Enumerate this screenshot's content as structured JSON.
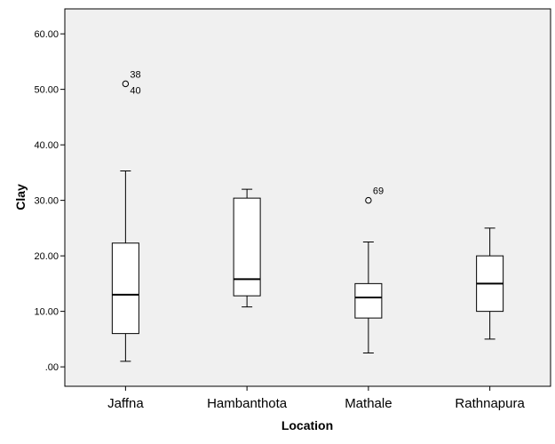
{
  "chart_data": {
    "type": "boxplot",
    "title": "",
    "xlabel": "Location",
    "ylabel": "Clay",
    "ylim": [
      -3.5,
      64.5
    ],
    "yticks": [
      0,
      10,
      20,
      30,
      40,
      50,
      60
    ],
    "ytick_labels": [
      ".00",
      "10.00",
      "20.00",
      "30.00",
      "40.00",
      "50.00",
      "60.00"
    ],
    "grid": false,
    "plot_background": "#f0f0f0",
    "box_fill": "#ffffff",
    "line_color": "#000000",
    "categories": [
      "Jaffna",
      "Hambanthota",
      "Mathale",
      "Rathnapura"
    ],
    "boxes": [
      {
        "category": "Jaffna",
        "whisker_low": 1.0,
        "q1": 6.0,
        "median": 13.0,
        "q3": 22.3,
        "whisker_high": 35.3,
        "outliers": [
          {
            "value": 51.0,
            "labels": [
              "38",
              "40"
            ]
          }
        ]
      },
      {
        "category": "Hambanthota",
        "whisker_low": 10.8,
        "q1": 12.8,
        "median": 15.8,
        "q3": 30.4,
        "whisker_high": 32.0,
        "outliers": []
      },
      {
        "category": "Mathale",
        "whisker_low": 2.5,
        "q1": 8.8,
        "median": 12.5,
        "q3": 15.0,
        "whisker_high": 22.5,
        "outliers": [
          {
            "value": 30.0,
            "labels": [
              "69"
            ]
          }
        ]
      },
      {
        "category": "Rathnapura",
        "whisker_low": 5.0,
        "q1": 10.0,
        "median": 15.0,
        "q3": 20.0,
        "whisker_high": 25.0,
        "outliers": []
      }
    ]
  }
}
